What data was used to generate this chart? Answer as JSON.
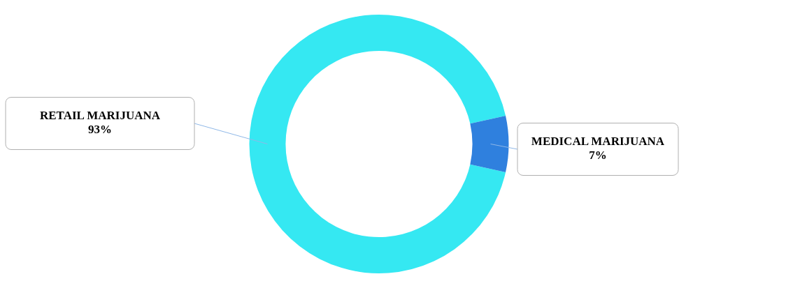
{
  "chart_data": {
    "type": "donut",
    "categories": [
      "RETAIL MARIJUANA",
      "MEDICAL MARIJUANA"
    ],
    "values": [
      93,
      7
    ],
    "colors": [
      "#35e8f2",
      "#2f80de"
    ],
    "value_labels": [
      "93%",
      "7%"
    ],
    "legend": false
  }
}
